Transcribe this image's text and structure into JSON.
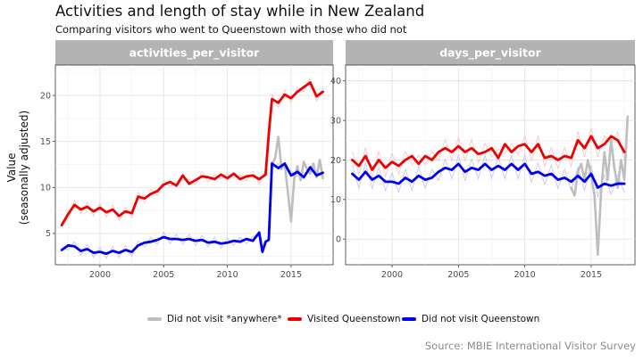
{
  "title": "Activities and length of stay while in New Zealand",
  "subtitle": "Comparing visitors who went to Queenstown with those who did not",
  "ylabel": "Value\n(seasonally adjusted)",
  "caption": "Source: MBIE International Visitor Survey",
  "legend": [
    {
      "label": "Did not visit *anywhere*",
      "color": "#bebebe"
    },
    {
      "label": "Visited Queenstown",
      "color": "#ee0000"
    },
    {
      "label": "Did not visit Queenstown",
      "color": "#0000ee"
    }
  ],
  "chart_data": [
    {
      "type": "line",
      "panel": "activities_per_visitor",
      "xlim": [
        1996.5,
        2018.3
      ],
      "ylim": [
        1.6,
        23.3
      ],
      "xticks": [
        2000,
        2005,
        2010,
        2015
      ],
      "yticks": [
        5,
        10,
        15,
        20
      ],
      "grid": true,
      "series": [
        {
          "name": "Visited Queenstown",
          "color": "#ee0000",
          "x": [
            1997.0,
            1997.5,
            1998.0,
            1998.5,
            1999.0,
            1999.5,
            2000.0,
            2000.5,
            2001.0,
            2001.5,
            2002.0,
            2002.5,
            2003.0,
            2003.5,
            2004.0,
            2004.5,
            2005.0,
            2005.5,
            2006.0,
            2006.5,
            2007.0,
            2007.5,
            2008.0,
            2008.5,
            2009.0,
            2009.5,
            2010.0,
            2010.5,
            2011.0,
            2011.5,
            2012.0,
            2012.5,
            2013.0,
            2013.25,
            2013.5,
            2014.0,
            2014.5,
            2015.0,
            2015.5,
            2016.0,
            2016.5,
            2017.0,
            2017.5
          ],
          "y": [
            5.9,
            7.1,
            8.1,
            7.6,
            7.9,
            7.4,
            7.8,
            7.3,
            7.6,
            6.9,
            7.4,
            7.2,
            9.0,
            8.8,
            9.3,
            9.6,
            10.3,
            10.6,
            10.2,
            11.3,
            10.4,
            10.8,
            11.2,
            11.1,
            10.9,
            11.4,
            11.0,
            11.5,
            10.9,
            11.2,
            11.3,
            10.9,
            11.4,
            15.8,
            19.6,
            19.2,
            20.1,
            19.7,
            20.4,
            20.9,
            21.4,
            19.9,
            20.4
          ]
        },
        {
          "name": "Did not visit Queenstown",
          "color": "#0000ee",
          "x": [
            1997.0,
            1997.5,
            1998.0,
            1998.5,
            1999.0,
            1999.5,
            2000.0,
            2000.5,
            2001.0,
            2001.5,
            2002.0,
            2002.5,
            2003.0,
            2003.5,
            2004.0,
            2004.5,
            2005.0,
            2005.5,
            2006.0,
            2006.5,
            2007.0,
            2007.5,
            2008.0,
            2008.5,
            2009.0,
            2009.5,
            2010.0,
            2010.5,
            2011.0,
            2011.5,
            2012.0,
            2012.5,
            2012.75,
            2013.0,
            2013.25,
            2013.5,
            2014.0,
            2014.5,
            2015.0,
            2015.5,
            2016.0,
            2016.5,
            2017.0,
            2017.5
          ],
          "y": [
            3.2,
            3.7,
            3.6,
            3.1,
            3.3,
            2.9,
            3.0,
            2.8,
            3.1,
            2.9,
            3.2,
            3.0,
            3.7,
            4.0,
            4.1,
            4.3,
            4.6,
            4.4,
            4.4,
            4.3,
            4.4,
            4.2,
            4.3,
            4.0,
            4.1,
            3.9,
            4.0,
            4.2,
            4.1,
            4.4,
            4.2,
            5.1,
            3.0,
            4.1,
            4.3,
            12.6,
            12.1,
            12.6,
            11.3,
            11.7,
            11.1,
            12.2,
            11.3,
            11.6
          ]
        },
        {
          "name": "Did not visit *anywhere*",
          "color": "#bebebe",
          "x": [
            2013.5,
            2013.75,
            2014.0,
            2014.25,
            2014.5,
            2014.75,
            2015.0,
            2015.25,
            2015.5,
            2015.75,
            2016.0,
            2016.25,
            2016.5,
            2016.75,
            2017.0,
            2017.25,
            2017.5
          ],
          "y": [
            12.5,
            13.2,
            15.5,
            12.0,
            12.6,
            9.5,
            6.3,
            11.0,
            12.3,
            10.8,
            12.8,
            12.0,
            11.5,
            12.6,
            11.1,
            13.0,
            11.0
          ]
        }
      ]
    },
    {
      "type": "line",
      "panel": "days_per_visitor",
      "xlim": [
        1996.5,
        2018.3
      ],
      "ylim": [
        -6.5,
        44
      ],
      "xticks": [
        2000,
        2005,
        2010,
        2015
      ],
      "yticks": [
        0,
        10,
        20,
        30,
        40
      ],
      "grid": true,
      "series": [
        {
          "name": "Visited Queenstown",
          "color": "#ee0000",
          "x": [
            1997.0,
            1997.5,
            1998.0,
            1998.5,
            1999.0,
            1999.5,
            2000.0,
            2000.5,
            2001.0,
            2001.5,
            2002.0,
            2002.5,
            2003.0,
            2003.5,
            2004.0,
            2004.5,
            2005.0,
            2005.5,
            2006.0,
            2006.5,
            2007.0,
            2007.5,
            2008.0,
            2008.5,
            2009.0,
            2009.5,
            2010.0,
            2010.5,
            2011.0,
            2011.5,
            2012.0,
            2012.5,
            2013.0,
            2013.5,
            2014.0,
            2014.5,
            2015.0,
            2015.5,
            2016.0,
            2016.5,
            2017.0,
            2017.5
          ],
          "y": [
            20,
            18.5,
            21,
            17.5,
            20,
            18,
            19.5,
            18.5,
            20,
            21,
            19,
            21,
            20,
            22,
            23,
            22,
            23.5,
            22,
            23,
            21.5,
            22,
            23,
            20.5,
            24,
            22,
            23.5,
            24,
            22,
            24,
            20.5,
            21,
            20,
            21,
            20.5,
            25,
            23,
            26,
            23,
            24,
            26,
            25,
            22
          ]
        },
        {
          "name": "Did not visit Queenstown",
          "color": "#0000ee",
          "x": [
            1997.0,
            1997.5,
            1998.0,
            1998.5,
            1999.0,
            1999.5,
            2000.0,
            2000.5,
            2001.0,
            2001.5,
            2002.0,
            2002.5,
            2003.0,
            2003.5,
            2004.0,
            2004.5,
            2005.0,
            2005.5,
            2006.0,
            2006.5,
            2007.0,
            2007.5,
            2008.0,
            2008.5,
            2009.0,
            2009.5,
            2010.0,
            2010.5,
            2011.0,
            2011.5,
            2012.0,
            2012.5,
            2013.0,
            2013.5,
            2014.0,
            2014.5,
            2015.0,
            2015.5,
            2016.0,
            2016.5,
            2017.0,
            2017.5
          ],
          "y": [
            16.5,
            15,
            17,
            15,
            16,
            14.5,
            14.5,
            14,
            15.5,
            14.5,
            16,
            15,
            15.5,
            17,
            18,
            17.5,
            19,
            17,
            18,
            17.5,
            19,
            17.5,
            18.5,
            17.5,
            19,
            17.5,
            19,
            16.5,
            17,
            16,
            16.5,
            15,
            15.5,
            14.5,
            16,
            14.5,
            16.5,
            13,
            14,
            13.5,
            14,
            14
          ]
        },
        {
          "name": "Did not visit *anywhere*",
          "color": "#bebebe",
          "x": [
            2013.5,
            2013.75,
            2014.0,
            2014.25,
            2014.5,
            2014.75,
            2015.0,
            2015.25,
            2015.5,
            2015.75,
            2016.0,
            2016.25,
            2016.5,
            2016.75,
            2017.0,
            2017.25,
            2017.5,
            2017.75
          ],
          "y": [
            13,
            11,
            17,
            19,
            15,
            20,
            16,
            11,
            -4,
            12,
            22,
            15,
            25,
            18,
            13,
            20,
            15,
            31
          ]
        }
      ]
    }
  ]
}
